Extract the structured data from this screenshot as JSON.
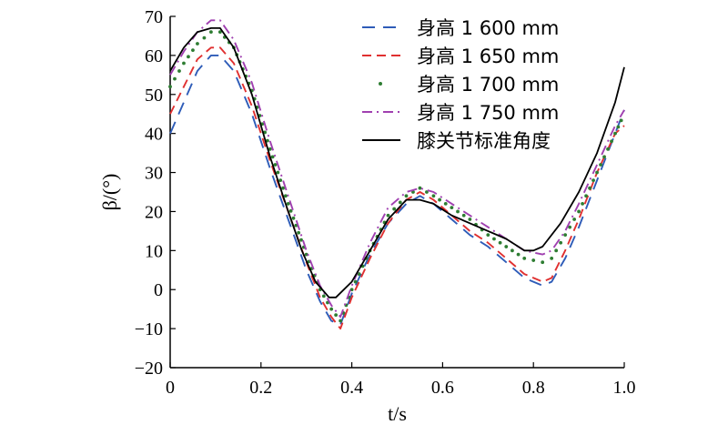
{
  "chart_data": {
    "type": "line",
    "xlabel": "t/s",
    "ylabel": "β/(°)",
    "xlim": [
      0,
      1.0
    ],
    "ylim": [
      -20,
      70
    ],
    "x_ticks": [
      "0",
      "0.2",
      "0.4",
      "0.6",
      "0.8",
      "1.0"
    ],
    "y_ticks": [
      "−20",
      "−10",
      "0",
      "10",
      "20",
      "30",
      "40",
      "50",
      "60",
      "70"
    ],
    "grid": false,
    "legend_position": "top-right",
    "series": [
      {
        "name": "身高  1 600 mm",
        "color": "#2e5cb8",
        "dash": "long-dash",
        "points": [
          [
            0,
            40
          ],
          [
            0.03,
            48
          ],
          [
            0.06,
            56
          ],
          [
            0.09,
            60
          ],
          [
            0.11,
            60
          ],
          [
            0.14,
            56
          ],
          [
            0.18,
            45
          ],
          [
            0.22,
            31
          ],
          [
            0.26,
            18
          ],
          [
            0.3,
            5
          ],
          [
            0.33,
            -3
          ],
          [
            0.355,
            -8
          ],
          [
            0.375,
            -9
          ],
          [
            0.4,
            -1
          ],
          [
            0.44,
            9
          ],
          [
            0.48,
            17
          ],
          [
            0.52,
            22
          ],
          [
            0.55,
            24
          ],
          [
            0.58,
            22
          ],
          [
            0.62,
            18
          ],
          [
            0.66,
            14
          ],
          [
            0.7,
            11
          ],
          [
            0.74,
            7
          ],
          [
            0.78,
            3
          ],
          [
            0.82,
            1
          ],
          [
            0.84,
            2
          ],
          [
            0.87,
            8
          ],
          [
            0.9,
            16
          ],
          [
            0.94,
            28
          ],
          [
            0.98,
            40
          ],
          [
            1.0,
            46
          ]
        ]
      },
      {
        "name": "身高  1 650 mm",
        "color": "#e03030",
        "dash": "dash",
        "points": [
          [
            0,
            45
          ],
          [
            0.03,
            52
          ],
          [
            0.06,
            59
          ],
          [
            0.09,
            62
          ],
          [
            0.11,
            62
          ],
          [
            0.14,
            58
          ],
          [
            0.18,
            47
          ],
          [
            0.22,
            33
          ],
          [
            0.26,
            20
          ],
          [
            0.3,
            7
          ],
          [
            0.33,
            -2
          ],
          [
            0.355,
            -7
          ],
          [
            0.375,
            -10
          ],
          [
            0.4,
            -2
          ],
          [
            0.44,
            8
          ],
          [
            0.48,
            17
          ],
          [
            0.52,
            23
          ],
          [
            0.55,
            25
          ],
          [
            0.58,
            23
          ],
          [
            0.62,
            19
          ],
          [
            0.66,
            15
          ],
          [
            0.7,
            12
          ],
          [
            0.74,
            8
          ],
          [
            0.78,
            4
          ],
          [
            0.82,
            2
          ],
          [
            0.84,
            3
          ],
          [
            0.87,
            10
          ],
          [
            0.9,
            18
          ],
          [
            0.94,
            30
          ],
          [
            0.98,
            40
          ],
          [
            1.0,
            42
          ]
        ]
      },
      {
        "name": "身高  1 700 mm",
        "color": "#2e7d32",
        "dash": "dot",
        "points": [
          [
            0,
            52
          ],
          [
            0.03,
            58
          ],
          [
            0.06,
            63
          ],
          [
            0.09,
            66
          ],
          [
            0.11,
            66
          ],
          [
            0.14,
            62
          ],
          [
            0.18,
            51
          ],
          [
            0.22,
            36
          ],
          [
            0.26,
            22
          ],
          [
            0.3,
            9
          ],
          [
            0.33,
            0
          ],
          [
            0.355,
            -5
          ],
          [
            0.375,
            -8
          ],
          [
            0.4,
            0
          ],
          [
            0.44,
            10
          ],
          [
            0.48,
            19
          ],
          [
            0.52,
            24
          ],
          [
            0.55,
            26
          ],
          [
            0.58,
            24
          ],
          [
            0.62,
            21
          ],
          [
            0.66,
            18
          ],
          [
            0.7,
            14
          ],
          [
            0.74,
            11
          ],
          [
            0.78,
            8
          ],
          [
            0.82,
            7
          ],
          [
            0.84,
            8
          ],
          [
            0.87,
            14
          ],
          [
            0.9,
            20
          ],
          [
            0.94,
            30
          ],
          [
            0.98,
            40
          ],
          [
            1.0,
            45
          ]
        ]
      },
      {
        "name": "身高  1 750 mm",
        "color": "#a040b0",
        "dash": "dash-dot",
        "points": [
          [
            0,
            55
          ],
          [
            0.03,
            61
          ],
          [
            0.06,
            66
          ],
          [
            0.09,
            69
          ],
          [
            0.11,
            69
          ],
          [
            0.14,
            64
          ],
          [
            0.18,
            53
          ],
          [
            0.22,
            38
          ],
          [
            0.26,
            24
          ],
          [
            0.3,
            10
          ],
          [
            0.33,
            1
          ],
          [
            0.355,
            -4
          ],
          [
            0.375,
            -7
          ],
          [
            0.4,
            1
          ],
          [
            0.44,
            12
          ],
          [
            0.48,
            21
          ],
          [
            0.52,
            25
          ],
          [
            0.55,
            26
          ],
          [
            0.58,
            25
          ],
          [
            0.62,
            22
          ],
          [
            0.66,
            19
          ],
          [
            0.7,
            16
          ],
          [
            0.74,
            13
          ],
          [
            0.78,
            10
          ],
          [
            0.82,
            9
          ],
          [
            0.84,
            10
          ],
          [
            0.87,
            15
          ],
          [
            0.9,
            22
          ],
          [
            0.94,
            32
          ],
          [
            0.98,
            42
          ],
          [
            1.0,
            46
          ]
        ]
      },
      {
        "name": "膝关节标准角度",
        "color": "#000000",
        "dash": "solid",
        "points": [
          [
            0,
            56
          ],
          [
            0.03,
            62
          ],
          [
            0.06,
            66
          ],
          [
            0.09,
            67
          ],
          [
            0.11,
            67
          ],
          [
            0.14,
            62
          ],
          [
            0.18,
            50
          ],
          [
            0.22,
            34
          ],
          [
            0.26,
            20
          ],
          [
            0.29,
            10
          ],
          [
            0.32,
            2
          ],
          [
            0.35,
            -2
          ],
          [
            0.365,
            -2
          ],
          [
            0.4,
            2
          ],
          [
            0.44,
            10
          ],
          [
            0.48,
            18
          ],
          [
            0.52,
            23
          ],
          [
            0.55,
            23
          ],
          [
            0.58,
            22
          ],
          [
            0.62,
            19
          ],
          [
            0.66,
            17
          ],
          [
            0.7,
            15
          ],
          [
            0.74,
            13
          ],
          [
            0.78,
            10
          ],
          [
            0.8,
            10
          ],
          [
            0.82,
            11
          ],
          [
            0.86,
            17
          ],
          [
            0.9,
            25
          ],
          [
            0.94,
            35
          ],
          [
            0.98,
            48
          ],
          [
            1.0,
            57
          ]
        ]
      }
    ]
  }
}
